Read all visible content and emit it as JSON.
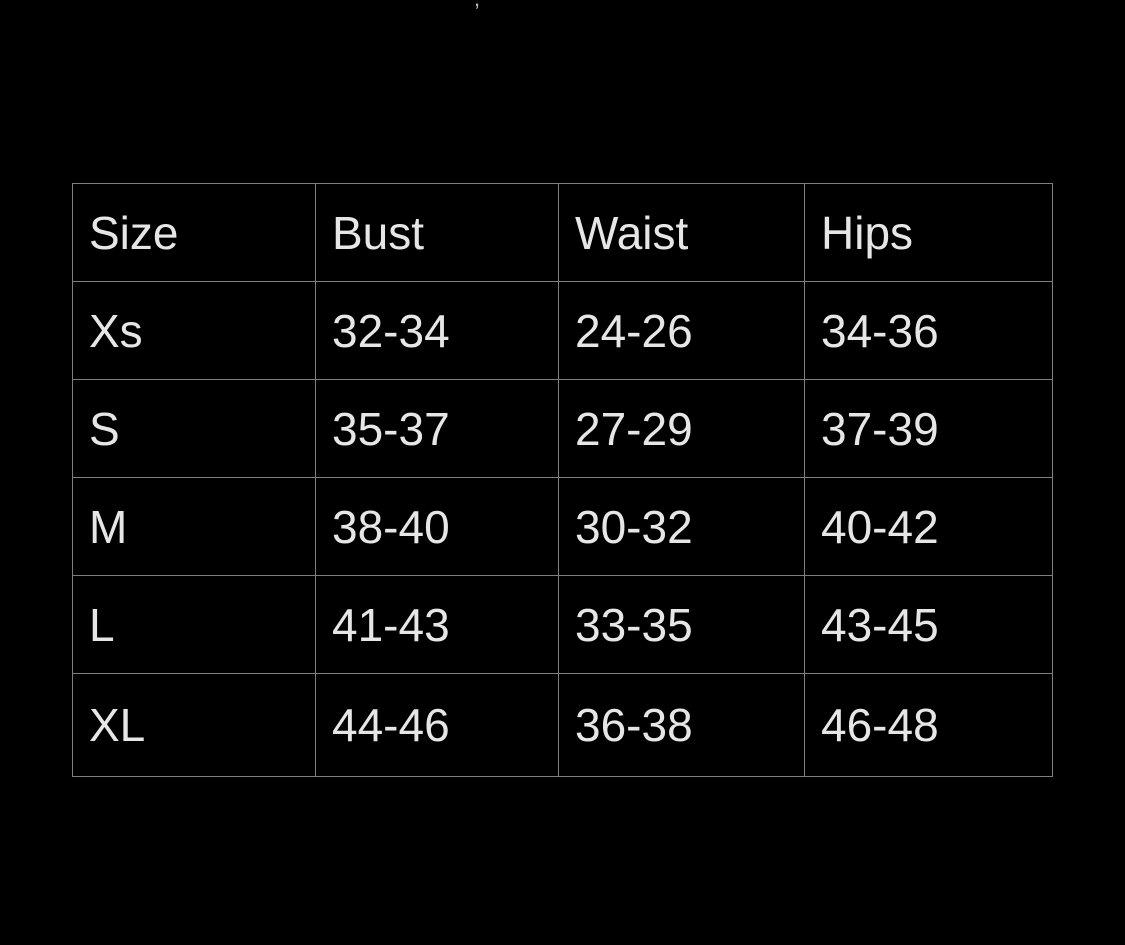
{
  "top_mark": ",",
  "table": {
    "headers": [
      "Size",
      "Bust",
      "Waist",
      "Hips"
    ],
    "rows": [
      [
        "Xs",
        "32-34",
        "24-26",
        "34-36"
      ],
      [
        "S",
        "35-37",
        "27-29",
        "37-39"
      ],
      [
        "M",
        "38-40",
        "30-32",
        "40-42"
      ],
      [
        "L",
        "41-43",
        "33-35",
        "43-45"
      ],
      [
        "XL",
        "44-46",
        "36-38",
        "46-48"
      ]
    ]
  },
  "colors": {
    "background": "#000000",
    "text": "#e6e6e6",
    "border": "#7f7f7f"
  }
}
